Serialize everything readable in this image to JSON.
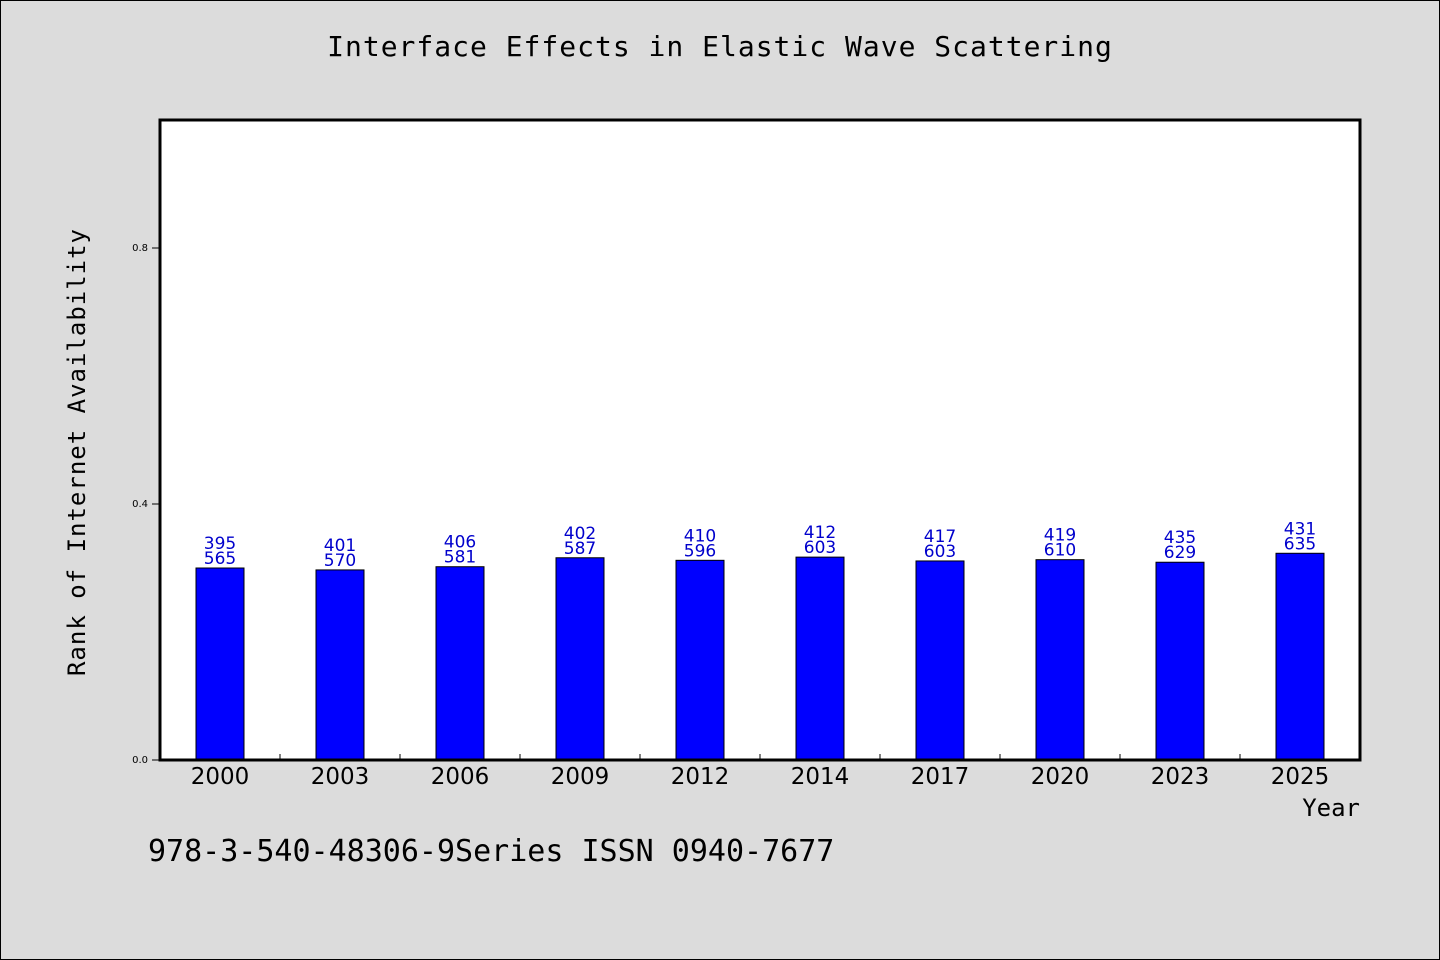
{
  "chart_data": {
    "type": "bar",
    "title": "Interface Effects in Elastic Wave Scattering",
    "xlabel": "Year",
    "ylabel": "Rank of Internet Availability",
    "footer": "978-3-540-48306-9Series ISSN 0940-7677",
    "categories": [
      "2000",
      "2003",
      "2006",
      "2009",
      "2012",
      "2014",
      "2017",
      "2020",
      "2023",
      "2025"
    ],
    "values": [
      0.3,
      0.297,
      0.302,
      0.316,
      0.312,
      0.317,
      0.311,
      0.313,
      0.309,
      0.323
    ],
    "labels_top": [
      "395",
      "401",
      "406",
      "402",
      "410",
      "412",
      "417",
      "419",
      "435",
      "431"
    ],
    "labels_bottom": [
      "565",
      "570",
      "581",
      "587",
      "596",
      "603",
      "603",
      "610",
      "629",
      "635"
    ],
    "ylim": [
      0,
      1.0
    ],
    "yticks": [
      0.0,
      0.4,
      0.8
    ],
    "ytick_labels": [
      "0.0",
      "0.4",
      "0.8"
    ],
    "grid": false,
    "colors": {
      "bar": "#0000ff",
      "label": "#0000cc",
      "background": "#dcdcdc",
      "plot": "#ffffff"
    }
  }
}
